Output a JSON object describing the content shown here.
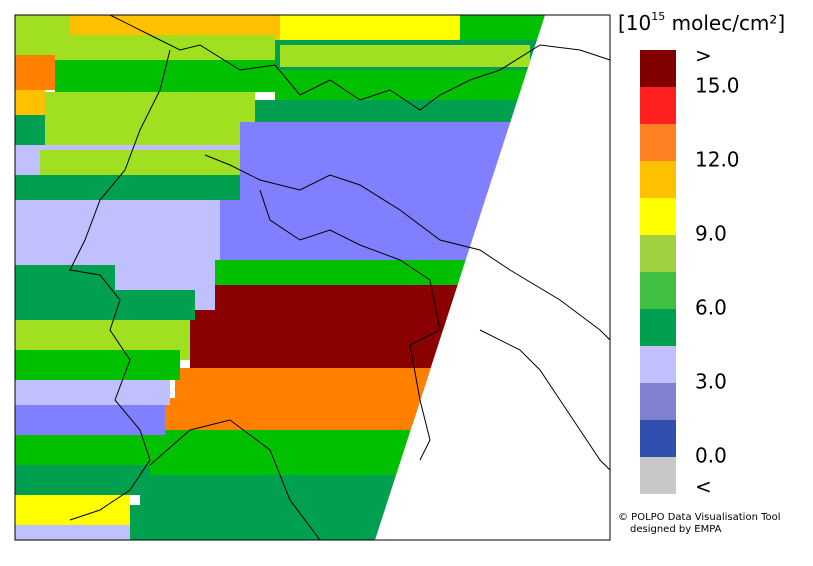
{
  "colorbar": {
    "title": {
      "prefix": "[10",
      "exponent": "15",
      "suffix": " molec/cm²]"
    },
    "labels": [
      ">",
      "15.0",
      "12.0",
      "9.0",
      "6.0",
      "3.0",
      "0.0",
      "<"
    ]
  },
  "credits": [
    "© POLPO Data Visualisation Tool",
    "designed by EMPA"
  ]
}
